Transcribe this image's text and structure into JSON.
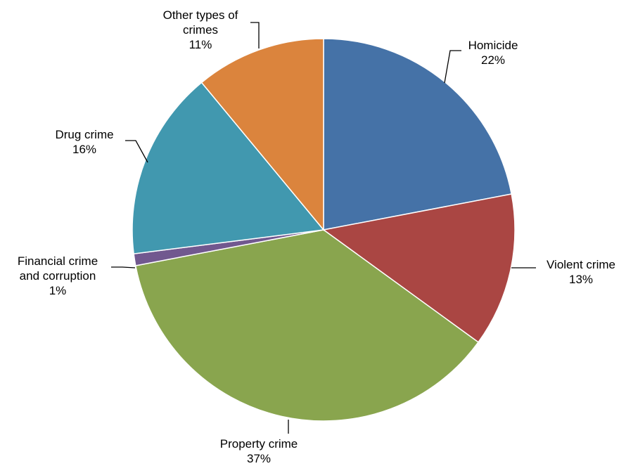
{
  "chart_data": {
    "type": "pie",
    "title": "",
    "legend": "none",
    "start_angle_deg": 0,
    "direction": "clockwise",
    "slices": [
      {
        "label": "Homicide",
        "label_lines": [
          "Homicide"
        ],
        "value": 22,
        "value_label": "22%",
        "color": "#4572a7"
      },
      {
        "label": "Violent crime",
        "label_lines": [
          "Violent crime"
        ],
        "value": 13,
        "value_label": "13%",
        "color": "#aa4643"
      },
      {
        "label": "Property crime",
        "label_lines": [
          "Property crime"
        ],
        "value": 37,
        "value_label": "37%",
        "color": "#89a54e"
      },
      {
        "label": "Financial crime and corruption",
        "label_lines": [
          "Financial crime",
          "and corruption"
        ],
        "value": 1,
        "value_label": "1%",
        "color": "#71588f"
      },
      {
        "label": "Drug crime",
        "label_lines": [
          "Drug crime"
        ],
        "value": 16,
        "value_label": "16%",
        "color": "#4198af"
      },
      {
        "label": "Other types of crimes",
        "label_lines": [
          "Other types of",
          "crimes"
        ],
        "value": 11,
        "value_label": "11%",
        "color": "#db843d"
      }
    ]
  }
}
